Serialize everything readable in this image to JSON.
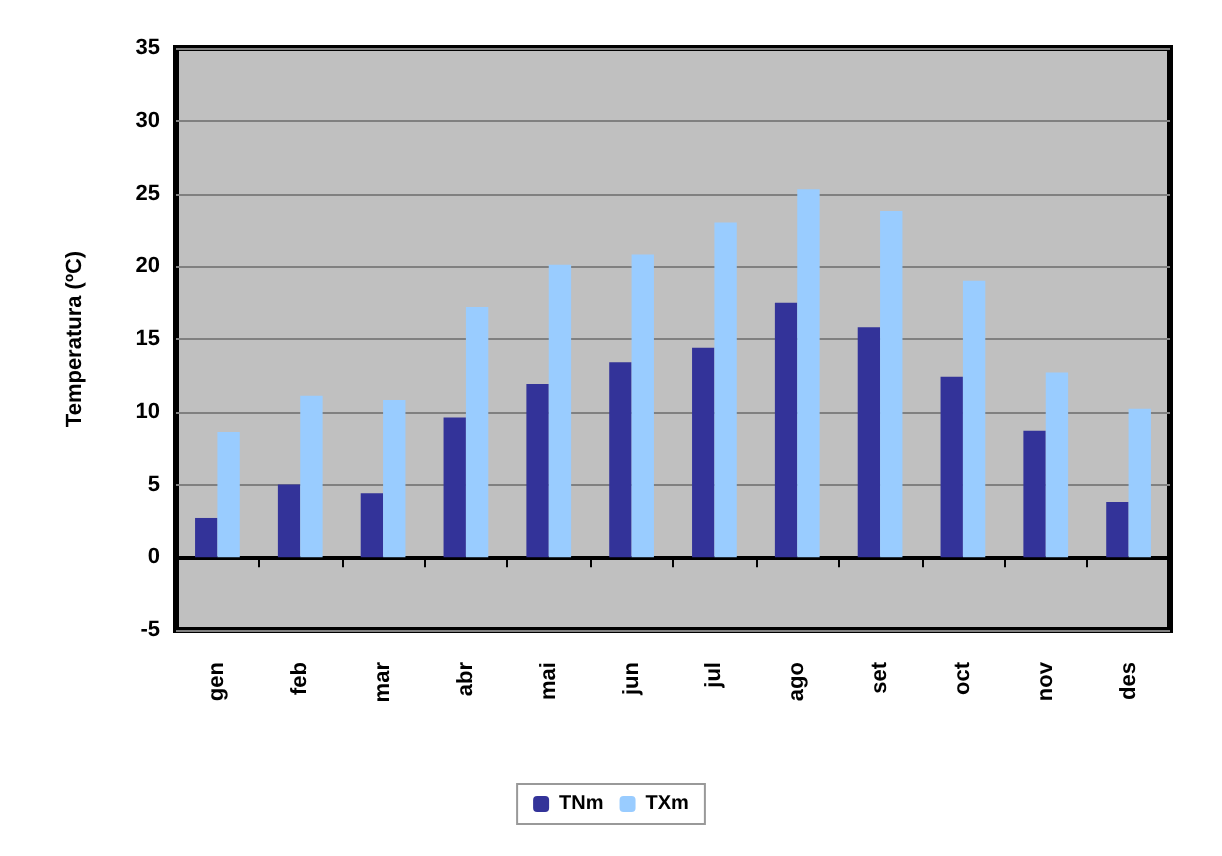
{
  "chart_data": {
    "type": "bar",
    "ylabel": "Temperatura (ºC)",
    "categories": [
      "gen",
      "feb",
      "mar",
      "abr",
      "mai",
      "jun",
      "jul",
      "ago",
      "set",
      "oct",
      "nov",
      "des"
    ],
    "series": [
      {
        "name": "TNm",
        "color": "#333399",
        "values": [
          2.7,
          5.0,
          4.4,
          9.6,
          11.9,
          13.4,
          14.4,
          17.5,
          15.8,
          12.4,
          8.7,
          3.8
        ]
      },
      {
        "name": "TXm",
        "color": "#99ccff",
        "values": [
          8.6,
          11.1,
          10.8,
          17.2,
          20.1,
          20.8,
          23.0,
          25.3,
          23.8,
          19.0,
          12.7,
          10.2
        ]
      }
    ],
    "ylim": [
      -5,
      35
    ],
    "yticks": [
      -5,
      0,
      5,
      10,
      15,
      20,
      25,
      30,
      35
    ],
    "grid": "y",
    "legend": "bottom"
  }
}
